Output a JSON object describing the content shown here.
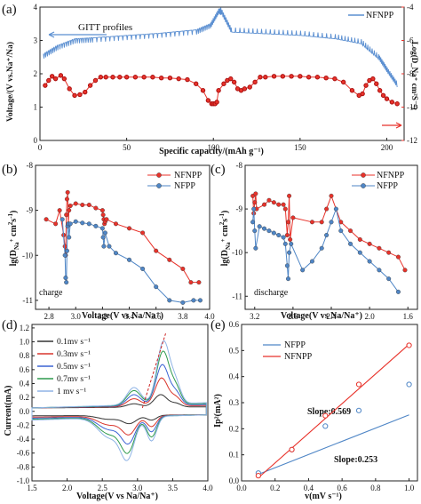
{
  "colors": {
    "nfnpp": "#e8322a",
    "nfpp": "#4f86c6",
    "gitt_blue": "#5b8fd1",
    "cv_0_1": "#333333",
    "cv_0_3": "#d9362d",
    "cv_0_5": "#3b63d4",
    "cv_0_7": "#2f9a4d",
    "cv_1": "#8fb4e6"
  },
  "chart_data": [
    {
      "panel": "(a)",
      "type": "line",
      "annotation": "GITT profiles",
      "xlabel": "Specific capacity/(mAh g⁻¹)",
      "ylabel": "Voltage/(V vs.Na⁺/Na)",
      "y2label": "Log(D_Na⁺ cm²S⁻¹)",
      "xlim": [
        0,
        210
      ],
      "ylim": [
        0,
        4
      ],
      "y2lim": [
        -12,
        -4
      ],
      "xticks": [
        "0",
        "50",
        "100",
        "150",
        "200"
      ],
      "yticks": [
        "0",
        "1",
        "2",
        "3",
        "4"
      ],
      "y2ticks": [
        "-12",
        "-10",
        "-8",
        "-6",
        "-4"
      ],
      "legend": [
        "NFNPP"
      ],
      "voltage_charge": {
        "x": [
          2,
          10,
          20,
          30,
          50,
          70,
          90,
          98,
          103,
          104
        ],
        "y": [
          2.6,
          2.85,
          3.05,
          3.08,
          3.15,
          3.22,
          3.32,
          3.5,
          3.95,
          3.9
        ]
      },
      "voltage_discharge": {
        "x": [
          104,
          110,
          130,
          150,
          170,
          185,
          195,
          200,
          206
        ],
        "y": [
          3.85,
          3.25,
          3.2,
          3.15,
          3.05,
          2.9,
          2.45,
          2.05,
          1.6
        ]
      },
      "diffusion": {
        "x": [
          3,
          5,
          7,
          9,
          12,
          14,
          17,
          20,
          23,
          26,
          29,
          32,
          35,
          38,
          42,
          46,
          50,
          55,
          60,
          65,
          70,
          75,
          80,
          85,
          90,
          94,
          97,
          99,
          100,
          101,
          102,
          103,
          106,
          108,
          110,
          112,
          114,
          116,
          118,
          121,
          124,
          127,
          130,
          135,
          140,
          145,
          150,
          155,
          160,
          165,
          170,
          175,
          180,
          184,
          186,
          188,
          190,
          192,
          194,
          196,
          198,
          200,
          203,
          206
        ],
        "y": [
          -8.7,
          -8.4,
          -8.15,
          -8.3,
          -8.1,
          -8.3,
          -8.9,
          -9.3,
          -9.25,
          -9.1,
          -8.7,
          -8.4,
          -8.2,
          -8.2,
          -8.2,
          -8.2,
          -8.2,
          -8.2,
          -8.2,
          -8.2,
          -8.25,
          -8.25,
          -8.3,
          -8.35,
          -8.6,
          -9.0,
          -9.6,
          -9.8,
          -9.8,
          -9.8,
          -9.7,
          -9.0,
          -8.6,
          -8.4,
          -8.3,
          -8.5,
          -8.9,
          -9.0,
          -8.9,
          -8.8,
          -8.5,
          -8.2,
          -8.2,
          -8.15,
          -8.15,
          -8.15,
          -8.15,
          -8.2,
          -8.2,
          -8.25,
          -8.3,
          -8.5,
          -9.0,
          -9.3,
          -9.2,
          -8.7,
          -8.4,
          -8.3,
          -8.6,
          -9.0,
          -9.3,
          -9.5,
          -9.7,
          -9.8
        ]
      }
    },
    {
      "panel": "(b)",
      "type": "scatter",
      "label": "charge",
      "xlabel": "Voltage(V vs Na/Na⁺)",
      "ylabel": "lg(D_Na⁺ cm²s⁻¹)",
      "xlim": [
        2.7,
        4.0
      ],
      "ylim": [
        -11.2,
        -8.0
      ],
      "xticks": [
        "2.8",
        "3.0",
        "3.2",
        "3.4",
        "3.6",
        "3.8",
        "4.0"
      ],
      "yticks": [
        "-8",
        "-9",
        "-10",
        "-11"
      ],
      "legend": [
        "NFNPP",
        "NFPP"
      ],
      "series": [
        {
          "name": "NFNPP",
          "x": [
            2.78,
            2.85,
            2.88,
            2.91,
            2.92,
            2.925,
            2.93,
            2.935,
            2.94,
            2.945,
            2.95,
            2.96,
            3.0,
            3.05,
            3.1,
            3.15,
            3.2,
            3.205,
            3.21,
            3.215,
            3.22,
            3.23,
            3.3,
            3.4,
            3.5,
            3.6,
            3.7,
            3.8,
            3.86,
            3.92
          ],
          "y": [
            -9.2,
            -9.3,
            -9.0,
            -9.55,
            -9.8,
            -10.0,
            -9.1,
            -8.75,
            -8.6,
            -9.3,
            -9.0,
            -8.9,
            -8.85,
            -8.88,
            -8.88,
            -8.95,
            -9.0,
            -9.1,
            -9.2,
            -9.3,
            -9.25,
            -9.2,
            -9.3,
            -9.4,
            -9.5,
            -9.9,
            -10.1,
            -10.3,
            -10.6,
            -10.6
          ]
        },
        {
          "name": "NFPP",
          "x": [
            2.9,
            2.92,
            2.925,
            2.93,
            2.935,
            2.94,
            2.945,
            2.95,
            2.96,
            3.0,
            3.05,
            3.1,
            3.15,
            3.2,
            3.205,
            3.21,
            3.22,
            3.25,
            3.3,
            3.4,
            3.5,
            3.6,
            3.7,
            3.8,
            3.88,
            3.93
          ],
          "y": [
            -9.2,
            -10.0,
            -10.5,
            -10.6,
            -9.9,
            -9.35,
            -9.3,
            -9.6,
            -9.3,
            -9.25,
            -9.28,
            -9.3,
            -9.35,
            -9.4,
            -9.6,
            -9.8,
            -9.5,
            -9.8,
            -9.95,
            -10.1,
            -10.3,
            -10.7,
            -11.0,
            -11.05,
            -11.0,
            -11.0
          ]
        }
      ]
    },
    {
      "panel": "(c)",
      "type": "scatter",
      "label": "discharge",
      "xlabel": "Voltage(V vs Na/Na⁺)",
      "ylabel": "lg(D_Na⁺ cm²s⁻¹)",
      "xlim": [
        3.3,
        1.5
      ],
      "ylim": [
        -11.3,
        -8.0
      ],
      "xticks": [
        "3.2",
        "2.8",
        "2.4",
        "2.0",
        "1.6"
      ],
      "yticks": [
        "-8",
        "-9",
        "-10",
        "-11"
      ],
      "legend": [
        "NFNPP",
        "NFPP"
      ],
      "series": [
        {
          "name": "NFNPP",
          "x": [
            3.22,
            3.21,
            3.2,
            3.19,
            3.18,
            3.1,
            3.05,
            3.0,
            2.95,
            2.9,
            2.88,
            2.86,
            2.85,
            2.84,
            2.83,
            2.8,
            2.6,
            2.5,
            2.45,
            2.4,
            2.3,
            2.2,
            2.1,
            2.0,
            1.9,
            1.8,
            1.7,
            1.63
          ],
          "y": [
            -8.7,
            -9.1,
            -8.85,
            -8.65,
            -9.0,
            -8.9,
            -8.8,
            -8.85,
            -8.9,
            -8.9,
            -9.0,
            -9.6,
            -9.3,
            -8.7,
            -9.7,
            -9.2,
            -9.3,
            -9.3,
            -9.0,
            -8.7,
            -9.3,
            -9.5,
            -9.7,
            -9.8,
            -9.9,
            -10.0,
            -10.1,
            -10.4
          ]
        },
        {
          "name": "NFPP",
          "x": [
            3.22,
            3.21,
            3.2,
            3.19,
            3.15,
            3.1,
            3.05,
            3.0,
            2.95,
            2.9,
            2.88,
            2.86,
            2.85,
            2.84,
            2.82,
            2.7,
            2.6,
            2.5,
            2.45,
            2.4,
            2.35,
            2.3,
            2.2,
            2.1,
            2.0,
            1.9,
            1.8,
            1.7
          ],
          "y": [
            -9.3,
            -9.0,
            -9.5,
            -9.9,
            -9.4,
            -9.45,
            -9.5,
            -9.55,
            -9.6,
            -9.65,
            -9.8,
            -10.3,
            -10.6,
            -10.0,
            -9.8,
            -10.4,
            -10.2,
            -9.9,
            -9.6,
            -9.3,
            -9.0,
            -9.5,
            -9.8,
            -10.0,
            -10.2,
            -10.4,
            -10.6,
            -10.9
          ]
        }
      ]
    },
    {
      "panel": "(d)",
      "type": "line",
      "xlabel": "Voltage(V vs Na/Na⁺)",
      "ylabel": "Current(mA)",
      "xlim": [
        1.5,
        4.0
      ],
      "ylim": [
        -1.0,
        1.25
      ],
      "xticks": [
        "1.5",
        "2.0",
        "2.5",
        "3.0",
        "3.5",
        "4.0"
      ],
      "yticks": [
        "-1.0",
        "-0.8",
        "-0.6",
        "-0.4",
        "-0.2",
        "0.0",
        "0.2",
        "0.4",
        "0.6",
        "0.8",
        "1.0",
        "1.2"
      ],
      "legend": [
        "0.1mv s⁻¹",
        "0.3mv s⁻¹",
        "0.5mv s⁻¹",
        "0.7mv s⁻¹",
        "1 mv s⁻¹"
      ],
      "peak_scale": [
        0.2,
        0.45,
        0.65,
        0.85,
        1.0
      ]
    },
    {
      "panel": "(e)",
      "type": "scatter",
      "xlabel": "v(mV s⁻¹)",
      "ylabel": "Ip²(mA²)",
      "xlim": [
        0.0,
        1.05
      ],
      "ylim": [
        0.0,
        0.6
      ],
      "xticks": [
        "0.0",
        "0.2",
        "0.4",
        "0.6",
        "0.8",
        "1.0"
      ],
      "yticks": [
        "0.0",
        "0.1",
        "0.2",
        "0.3",
        "0.4",
        "0.5",
        "0.6"
      ],
      "legend": [
        "NFPP",
        "NFNPP"
      ],
      "annotations": [
        "Slope:0.569",
        "Slope:0.253"
      ],
      "series": [
        {
          "name": "NFPP",
          "x": [
            0.1,
            0.3,
            0.5,
            0.7,
            1.0
          ],
          "y": [
            0.03,
            0.12,
            0.21,
            0.27,
            0.37
          ]
        },
        {
          "name": "NFNPP",
          "x": [
            0.1,
            0.3,
            0.5,
            0.7,
            1.0
          ],
          "y": [
            0.02,
            0.12,
            0.25,
            0.37,
            0.52
          ]
        }
      ]
    }
  ],
  "panels": {
    "a": {
      "tag": "(a)",
      "annotation": "GITT profiles",
      "legend": "NFNPP",
      "xlabel": "Specific capacity/(mAh g⁻¹)",
      "ylabel": "Voltage/(V vs.Na⁺/Na)",
      "y2label": "Log(D_Na⁺ cm²S⁻¹)"
    },
    "b": {
      "tag": "(b)",
      "label": "charge",
      "leg1": "NFNPP",
      "leg2": "NFPP",
      "xlabel": "Voltage(V vs Na/Na⁺)"
    },
    "c": {
      "tag": "(c)",
      "label": "discharge",
      "leg1": "NFNPP",
      "leg2": "NFPP",
      "xlabel": "Voltage(V vs Na/Na⁺)"
    },
    "d": {
      "tag": "(d)",
      "xlabel": "Voltage(V vs Na/Na⁺)",
      "ylabel": "Current(mA)"
    },
    "e": {
      "tag": "(e)",
      "leg1": "NFPP",
      "leg2": "NFNPP",
      "slope1": "Slope:0.569",
      "slope2": "Slope:0.253",
      "xlabel": "v(mV s⁻¹)",
      "ylabel": "Ip²(mA²)"
    }
  }
}
